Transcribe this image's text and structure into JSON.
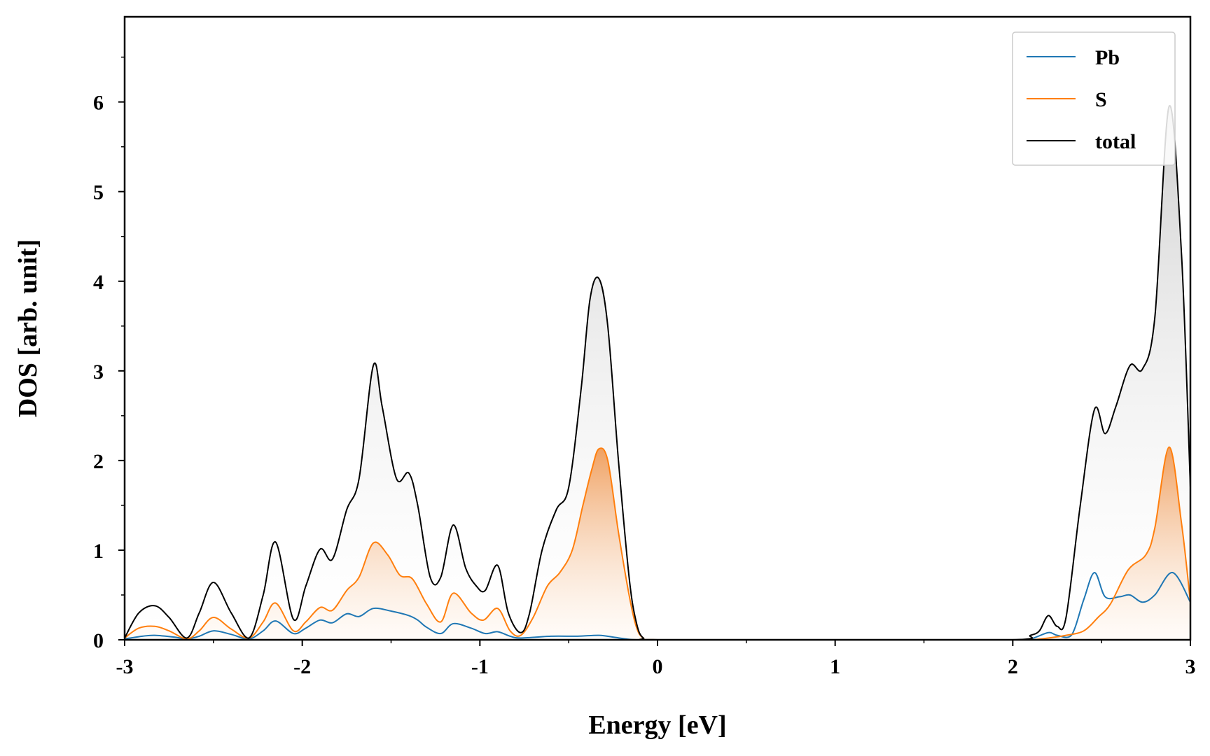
{
  "chart_data": {
    "type": "line",
    "title": "",
    "xlabel": "Energy [eV]",
    "ylabel": "DOS [arb. unit]",
    "xlim": [
      -3,
      3
    ],
    "ylim": [
      0,
      6.95
    ],
    "x_ticks": [
      -3,
      -2,
      -1,
      0,
      1,
      2,
      3
    ],
    "x_tick_labels": [
      "-3",
      "-2",
      "-1",
      "0",
      "1",
      "2",
      "3"
    ],
    "y_ticks": [
      0,
      1,
      2,
      3,
      4,
      5,
      6
    ],
    "y_tick_labels": [
      "0",
      "1",
      "2",
      "3",
      "4",
      "5",
      "6"
    ],
    "grid": false,
    "legend": {
      "placement": "top-right",
      "entries": [
        "Pb",
        "S",
        "total"
      ]
    },
    "series": [
      {
        "name": "Pb",
        "color": "#1f77b4",
        "filled": false,
        "x": [
          -3.0,
          -2.9,
          -2.83,
          -2.72,
          -2.65,
          -2.58,
          -2.5,
          -2.4,
          -2.3,
          -2.22,
          -2.15,
          -2.05,
          -1.98,
          -1.9,
          -1.83,
          -1.75,
          -1.68,
          -1.6,
          -1.5,
          -1.4,
          -1.35,
          -1.3,
          -1.22,
          -1.15,
          -1.05,
          -0.97,
          -0.9,
          -0.83,
          -0.77,
          -0.6,
          -0.45,
          -0.33,
          -0.25,
          -0.18,
          -0.12,
          0.0,
          1.0,
          2.0,
          2.1,
          2.2,
          2.25,
          2.33,
          2.4,
          2.46,
          2.52,
          2.6,
          2.66,
          2.73,
          2.8,
          2.9,
          3.0
        ],
        "y": [
          0.01,
          0.04,
          0.05,
          0.03,
          0.01,
          0.04,
          0.1,
          0.06,
          0.01,
          0.1,
          0.21,
          0.07,
          0.13,
          0.22,
          0.19,
          0.29,
          0.26,
          0.35,
          0.32,
          0.27,
          0.22,
          0.14,
          0.07,
          0.18,
          0.13,
          0.07,
          0.09,
          0.04,
          0.02,
          0.04,
          0.04,
          0.05,
          0.03,
          0.01,
          0.0,
          0.0,
          0.0,
          0.0,
          0.01,
          0.08,
          0.05,
          0.05,
          0.45,
          0.75,
          0.48,
          0.48,
          0.5,
          0.42,
          0.5,
          0.75,
          0.42
        ]
      },
      {
        "name": "S",
        "color": "#ff7f0e",
        "filled": true,
        "x": [
          -3.0,
          -2.92,
          -2.83,
          -2.75,
          -2.65,
          -2.58,
          -2.5,
          -2.4,
          -2.3,
          -2.22,
          -2.15,
          -2.05,
          -1.98,
          -1.9,
          -1.83,
          -1.75,
          -1.68,
          -1.6,
          -1.52,
          -1.45,
          -1.38,
          -1.3,
          -1.22,
          -1.15,
          -1.05,
          -0.98,
          -0.9,
          -0.83,
          -0.77,
          -0.7,
          -0.62,
          -0.55,
          -0.48,
          -0.42,
          -0.37,
          -0.33,
          -0.28,
          -0.22,
          -0.16,
          -0.12,
          -0.08,
          0.0,
          1.0,
          2.0,
          2.1,
          2.2,
          2.3,
          2.4,
          2.48,
          2.55,
          2.65,
          2.75,
          2.8,
          2.88,
          2.95,
          3.0
        ],
        "y": [
          0.02,
          0.13,
          0.15,
          0.1,
          0.01,
          0.1,
          0.25,
          0.12,
          0.02,
          0.2,
          0.41,
          0.1,
          0.2,
          0.36,
          0.33,
          0.55,
          0.7,
          1.08,
          0.95,
          0.72,
          0.68,
          0.4,
          0.2,
          0.52,
          0.3,
          0.22,
          0.35,
          0.1,
          0.05,
          0.25,
          0.6,
          0.75,
          1.0,
          1.5,
          1.9,
          2.13,
          2.0,
          1.2,
          0.5,
          0.15,
          0.02,
          0.0,
          0.0,
          0.0,
          0.0,
          0.02,
          0.05,
          0.1,
          0.25,
          0.4,
          0.78,
          0.95,
          1.25,
          2.15,
          1.3,
          0.42
        ]
      },
      {
        "name": "total",
        "color": "#000000",
        "filled": true,
        "x": [
          -3.0,
          -2.92,
          -2.83,
          -2.75,
          -2.65,
          -2.58,
          -2.5,
          -2.4,
          -2.3,
          -2.22,
          -2.15,
          -2.05,
          -1.98,
          -1.9,
          -1.83,
          -1.75,
          -1.68,
          -1.6,
          -1.55,
          -1.47,
          -1.4,
          -1.35,
          -1.28,
          -1.22,
          -1.15,
          -1.08,
          -1.02,
          -0.97,
          -0.9,
          -0.84,
          -0.77,
          -0.72,
          -0.65,
          -0.57,
          -0.5,
          -0.43,
          -0.38,
          -0.33,
          -0.28,
          -0.22,
          -0.16,
          -0.12,
          -0.08,
          0.0,
          1.0,
          2.0,
          2.1,
          2.15,
          2.2,
          2.25,
          2.3,
          2.38,
          2.46,
          2.52,
          2.58,
          2.66,
          2.73,
          2.8,
          2.88,
          2.95,
          3.0
        ],
        "y": [
          0.02,
          0.3,
          0.38,
          0.25,
          0.02,
          0.3,
          0.64,
          0.3,
          0.02,
          0.5,
          1.09,
          0.23,
          0.6,
          1.01,
          0.9,
          1.45,
          1.8,
          3.06,
          2.6,
          1.8,
          1.86,
          1.5,
          0.7,
          0.7,
          1.28,
          0.8,
          0.6,
          0.55,
          0.83,
          0.3,
          0.08,
          0.3,
          1.0,
          1.45,
          1.7,
          2.8,
          3.8,
          4.03,
          3.5,
          2.0,
          0.7,
          0.2,
          0.02,
          0.0,
          0.0,
          0.0,
          0.05,
          0.1,
          0.27,
          0.15,
          0.25,
          1.5,
          2.57,
          2.3,
          2.6,
          3.06,
          3.02,
          3.6,
          5.95,
          4.3,
          1.7
        ]
      }
    ]
  }
}
